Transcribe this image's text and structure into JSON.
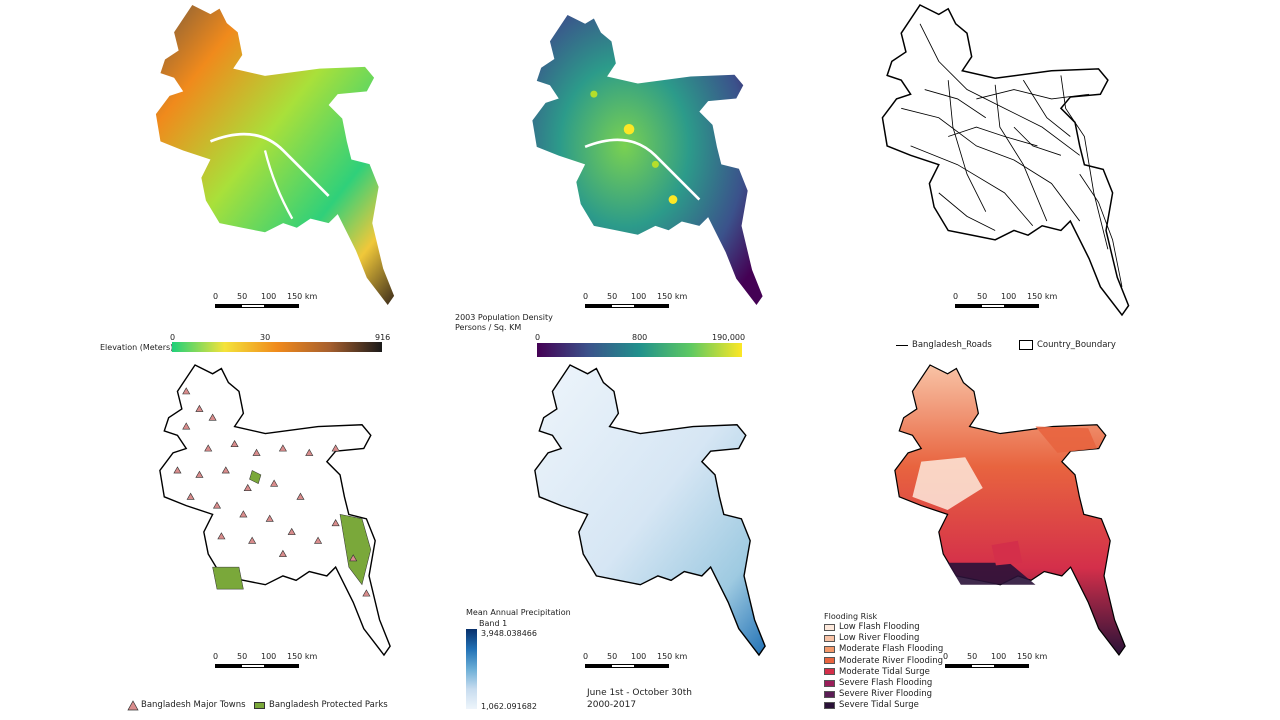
{
  "scalebar": {
    "ticks": [
      "0",
      "50",
      "100",
      "150 km"
    ]
  },
  "elevation_map": {
    "legend_title": "Elevation (Meters)",
    "ramp_ticks": [
      "0",
      "30",
      "916"
    ],
    "ramp_colors": [
      "#1fd07a",
      "#f4e33a",
      "#f08a1c",
      "#a65f2e",
      "#1a1a1a"
    ]
  },
  "population_map": {
    "legend_title_line1": "2003 Population Density",
    "legend_title_line2": "Persons / Sq. KM",
    "ramp_ticks": [
      "0",
      "800",
      "190,000"
    ],
    "ramp_colors": [
      "#440154",
      "#3b528b",
      "#21918c",
      "#5ec962",
      "#fde725"
    ]
  },
  "roads_map": {
    "legend_roads": "Bangladesh_Roads",
    "legend_boundary": "Country_Boundary"
  },
  "towns_map": {
    "legend_towns": "Bangladesh Major Towns",
    "legend_parks": "Bangladesh Protected Parks",
    "town_color": "#d98c8c",
    "park_color": "#7aa83a"
  },
  "precip_map": {
    "legend_title": "Mean Annual Precipitation",
    "band_label": "Band 1",
    "max_value": "3,948.038466",
    "min_value": "1,062.091682",
    "period_line1": "June 1st - October 30th",
    "period_line2": "2000-2017",
    "ramp_colors": [
      "#eef5fb",
      "#c7dcef",
      "#6baed6",
      "#2171b5",
      "#08306b"
    ]
  },
  "flood_map": {
    "legend_title": "Flooding Risk",
    "classes": [
      {
        "label": "Low Flash Flooding",
        "color": "#fde9dc"
      },
      {
        "label": "Low River Flooding",
        "color": "#f8c3a6"
      },
      {
        "label": "Moderate Flash Flooding",
        "color": "#f3996b"
      },
      {
        "label": "Moderate River Flooding",
        "color": "#e8643f"
      },
      {
        "label": "Moderate Tidal Surge",
        "color": "#d42f4a"
      },
      {
        "label": "Severe Flash Flooding",
        "color": "#9a1f5a"
      },
      {
        "label": "Severe River Flooding",
        "color": "#5b1d55"
      },
      {
        "label": "Severe Tidal Surge",
        "color": "#2a1238"
      }
    ]
  }
}
